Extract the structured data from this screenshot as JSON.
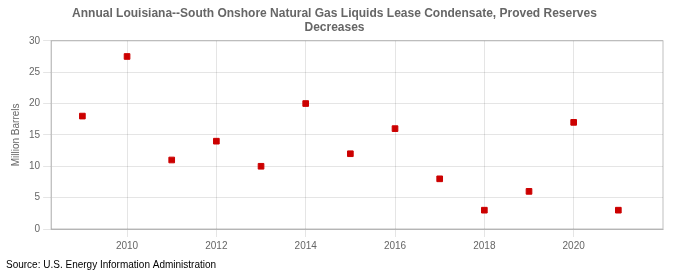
{
  "chart_data": {
    "type": "scatter",
    "title": "Annual Louisiana--South Onshore Natural Gas Liquids Lease Condensate, Proved Reserves\nDecreases",
    "ylabel": "Million Barrels",
    "source": "Source: U.S. Energy Information Administration",
    "x": [
      2009,
      2010,
      2011,
      2012,
      2013,
      2014,
      2015,
      2016,
      2017,
      2018,
      2019,
      2020,
      2021
    ],
    "values": [
      18,
      27.5,
      11,
      14,
      10,
      20,
      12,
      16,
      8,
      3,
      6,
      17,
      3
    ],
    "color": "#cc0000",
    "marker": "square",
    "xlim": [
      2008.3,
      2022.0
    ],
    "xticks": [
      2010,
      2012,
      2014,
      2016,
      2018,
      2020
    ],
    "ylim": [
      0,
      30
    ],
    "yticks": [
      0,
      5,
      10,
      15,
      20,
      25,
      30
    ],
    "grid": true
  }
}
